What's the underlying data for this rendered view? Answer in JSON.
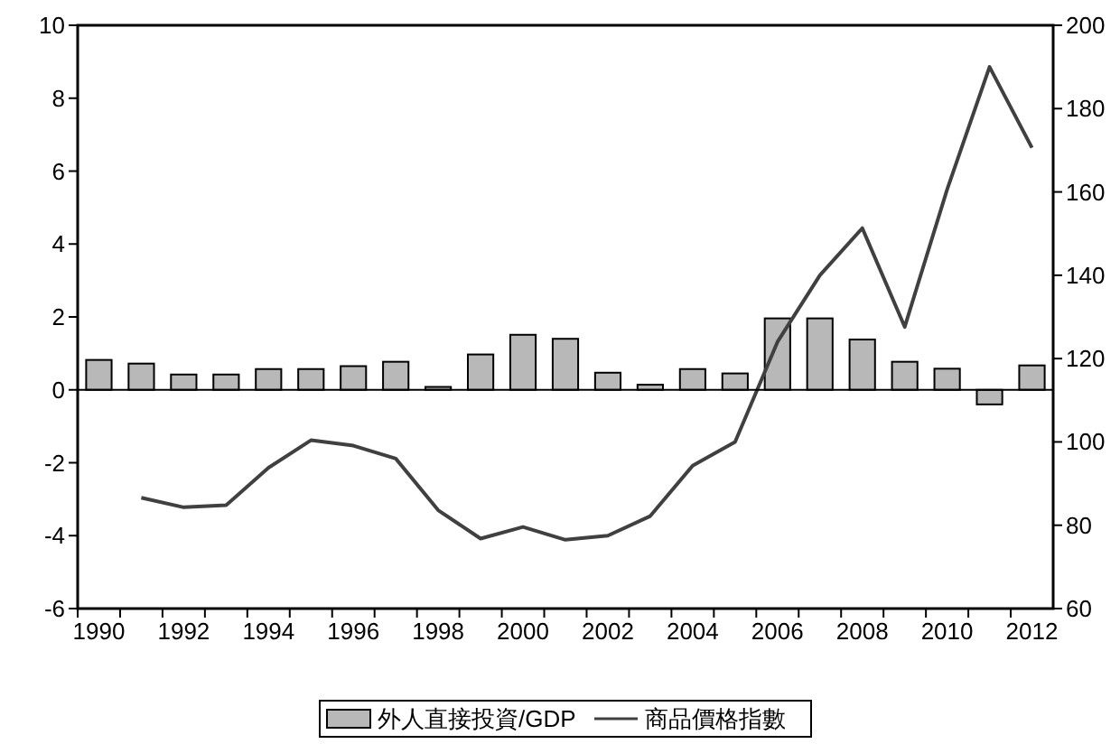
{
  "chart_data": {
    "type": "bar",
    "categories": [
      "1990",
      null,
      "1992",
      null,
      "1994",
      null,
      "1996",
      null,
      "1998",
      null,
      "2000",
      null,
      "2002",
      null,
      "2004",
      null,
      "2006",
      null,
      "2008",
      null,
      "2010",
      null,
      "2012"
    ],
    "series": [
      {
        "name": "外人直接投資/GDP",
        "color": "#b8b8b8",
        "values": [
          0.82,
          0.72,
          0.42,
          0.42,
          0.57,
          0.57,
          0.65,
          0.77,
          0.08,
          0.97,
          1.51,
          1.4,
          0.47,
          0.14,
          0.57,
          0.45,
          1.96,
          1.96,
          1.38,
          0.77,
          0.58,
          -0.4,
          0.67
        ]
      },
      {
        "name": "商品價格指數",
        "color": "#404040",
        "type": "line",
        "axis": "y2",
        "values": [
          null,
          86.6,
          84.3,
          84.8,
          93.8,
          100.4,
          99.1,
          96,
          83.6,
          76.8,
          79.6,
          76.5,
          77.5,
          82.2,
          94.3,
          100,
          124,
          140,
          151.3,
          127.6,
          160.6,
          190,
          170.6
        ]
      }
    ],
    "ylim": [
      -6,
      10
    ],
    "yticks": [
      -6,
      -4,
      -2,
      0,
      2,
      4,
      6,
      8,
      10
    ],
    "y2lim": [
      60,
      200
    ],
    "y2ticks": [
      60,
      80,
      100,
      120,
      140,
      160,
      180,
      200
    ],
    "legend": "bottom",
    "marker": "none",
    "line_style": "solid"
  }
}
